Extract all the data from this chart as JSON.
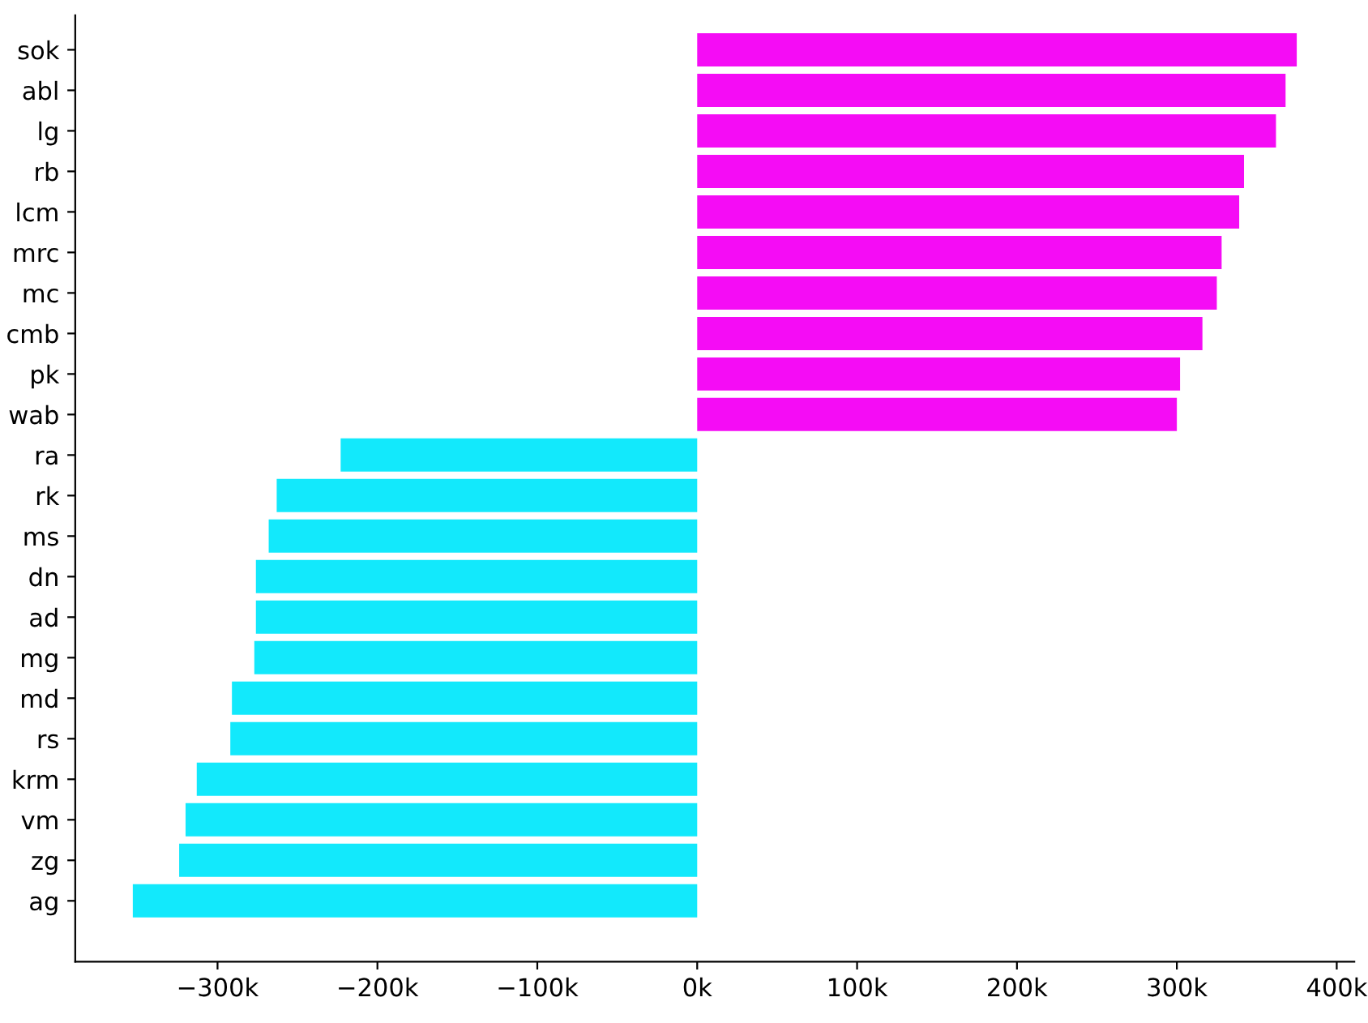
{
  "chart_data": {
    "type": "bar",
    "orientation": "horizontal",
    "categories": [
      "sok",
      "abl",
      "lg",
      "rb",
      "lcm",
      "mrc",
      "mc",
      "cmb",
      "pk",
      "wab",
      "ra",
      "rk",
      "ms",
      "dn",
      "ad",
      "mg",
      "md",
      "rs",
      "krm",
      "vm",
      "zg",
      "ag"
    ],
    "values": [
      375000,
      368000,
      362000,
      342000,
      339000,
      328000,
      325000,
      316000,
      302000,
      300000,
      -223000,
      -263000,
      -268000,
      -276000,
      -276000,
      -277000,
      -291000,
      -292000,
      -313000,
      -320000,
      -324000,
      -353000
    ],
    "colors": [
      "#f50cf5",
      "#f50cf5",
      "#f50cf5",
      "#f50cf5",
      "#f50cf5",
      "#f50cf5",
      "#f50cf5",
      "#f50cf5",
      "#f50cf5",
      "#f50cf5",
      "#12e9fc",
      "#12e9fc",
      "#12e9fc",
      "#12e9fc",
      "#12e9fc",
      "#12e9fc",
      "#12e9fc",
      "#12e9fc",
      "#12e9fc",
      "#12e9fc",
      "#12e9fc",
      "#12e9fc"
    ],
    "xlim": [
      -389000,
      411000
    ],
    "xticks": [
      {
        "value": -300000,
        "label": "−300k"
      },
      {
        "value": -200000,
        "label": "−200k"
      },
      {
        "value": -100000,
        "label": "−100k"
      },
      {
        "value": 0,
        "label": "0k"
      },
      {
        "value": 100000,
        "label": "100k"
      },
      {
        "value": 200000,
        "label": "200k"
      },
      {
        "value": 300000,
        "label": "300k"
      },
      {
        "value": 400000,
        "label": "400k"
      }
    ],
    "grid": false
  }
}
